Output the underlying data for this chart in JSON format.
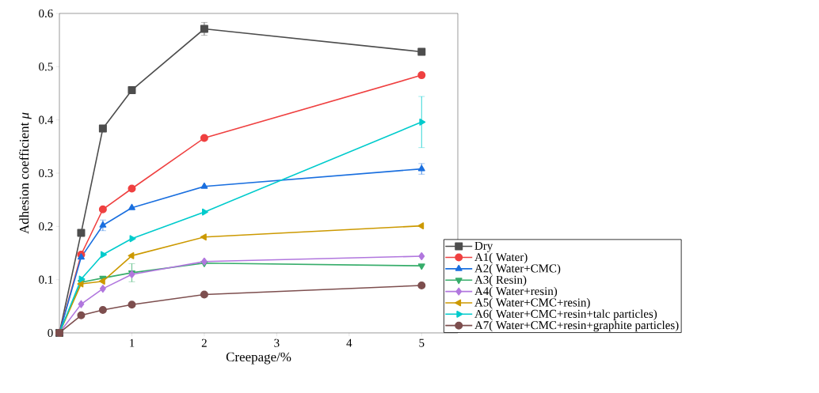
{
  "chart_data": {
    "type": "line",
    "xlabel": "Creepage/%",
    "ylabel": "Adhesion coefficient *μ*",
    "xlim": [
      0,
      5.5
    ],
    "ylim": [
      0,
      0.6
    ],
    "xticks": [
      1,
      2,
      3,
      4,
      5
    ],
    "yticks": [
      0,
      0.1,
      0.2,
      0.3,
      0.4,
      0.5,
      0.6
    ],
    "x": [
      0,
      0.3,
      0.6,
      1,
      2,
      5
    ],
    "legend": "right",
    "grid": false,
    "line_style": "solid",
    "series": [
      {
        "name": "Dry",
        "color": "#4d4d4d",
        "marker": "square",
        "values": [
          0,
          0.188,
          0.384,
          0.456,
          0.571,
          0.528
        ],
        "errors": [
          null,
          null,
          null,
          null,
          0.012,
          0.005
        ]
      },
      {
        "name": "A1( Water)",
        "color": "#ef4040",
        "marker": "circle",
        "values": [
          0,
          0.147,
          0.232,
          0.271,
          0.366,
          0.484
        ]
      },
      {
        "name": "A2( Water+CMC)",
        "color": "#1a6fdf",
        "marker": "triangle",
        "values": [
          0,
          0.142,
          0.202,
          0.235,
          0.275,
          0.308
        ],
        "errors": [
          null,
          null,
          0.01,
          null,
          null,
          0.01
        ]
      },
      {
        "name": "A3( Resin)",
        "color": "#37ad6b",
        "marker": "triangle-down",
        "values": [
          0,
          0.095,
          0.103,
          0.113,
          0.131,
          0.126
        ],
        "errors": [
          null,
          null,
          null,
          0.017,
          null,
          null
        ]
      },
      {
        "name": "A4( Water+resin)",
        "color": "#b177de",
        "marker": "diamond",
        "values": [
          0,
          0.054,
          0.083,
          0.11,
          0.134,
          0.144
        ]
      },
      {
        "name": "A5( Water+CMC+resin)",
        "color": "#cc9900",
        "marker": "triangle-left",
        "values": [
          0,
          0.092,
          0.097,
          0.145,
          0.18,
          0.201
        ]
      },
      {
        "name": "A6( Water+CMC+resin+talc particles)",
        "color": "#00cbcc",
        "marker": "triangle-right",
        "values": [
          0,
          0.101,
          0.147,
          0.177,
          0.227,
          0.396
        ],
        "errors": [
          null,
          null,
          null,
          null,
          null,
          0.048
        ]
      },
      {
        "name": "A7( Water+CMC+resin+graphite particles)",
        "color": "#7d4e4e",
        "marker": "circle",
        "values": [
          0,
          0.033,
          0.043,
          0.053,
          0.072,
          0.089
        ]
      }
    ]
  }
}
